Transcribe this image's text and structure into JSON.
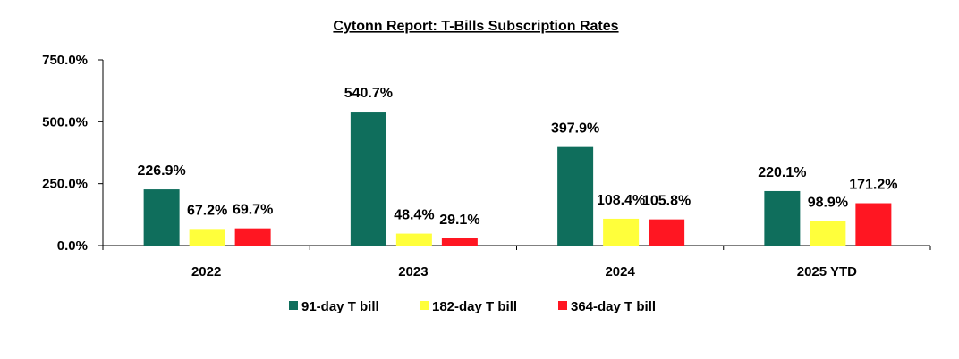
{
  "chart_data": {
    "type": "bar",
    "title": "Cytonn Report: T-Bills Subscription Rates",
    "categories": [
      "2022",
      "2023",
      "2024",
      "2025 YTD"
    ],
    "series": [
      {
        "name": "91-day T bill",
        "color": "#0f6e5c",
        "values": [
          226.9,
          540.7,
          397.9,
          220.1
        ]
      },
      {
        "name": "182-day T bill",
        "color": "#ffff3b",
        "values": [
          67.2,
          48.4,
          108.4,
          98.9
        ]
      },
      {
        "name": "364-day T bill",
        "color": "#ff1622",
        "values": [
          69.7,
          29.1,
          105.8,
          171.2
        ]
      }
    ],
    "value_suffix": "%",
    "ylim": [
      0,
      750
    ],
    "yticks": [
      0,
      250,
      500,
      750
    ],
    "ytick_labels": [
      "0.0%",
      "250.0%",
      "500.0%",
      "750.0%"
    ],
    "grid": false,
    "legend_position": "bottom"
  }
}
